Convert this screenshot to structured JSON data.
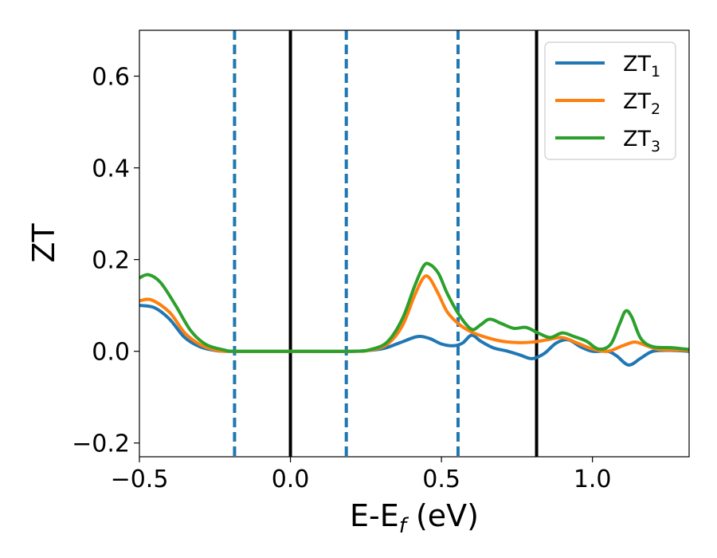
{
  "chart_data": {
    "type": "line",
    "xlabel": "E-E",
    "xlabel_sub": "f",
    "xlabel_unit": " (eV)",
    "ylabel": "ZT",
    "xlim": [
      -0.5,
      1.32
    ],
    "ylim": [
      -0.23,
      0.7
    ],
    "xticks": [
      -0.5,
      0.0,
      0.5,
      1.0
    ],
    "xtick_labels": [
      "−0.5",
      "0.0",
      "0.5",
      "1.0"
    ],
    "yticks": [
      -0.2,
      0.0,
      0.2,
      0.4,
      0.6
    ],
    "ytick_labels": [
      "−0.2",
      "0.0",
      "0.2",
      "0.4",
      "0.6"
    ],
    "grid": false,
    "legend_position": "top-right",
    "vlines_solid": [
      0.0,
      0.815
    ],
    "vlines_dashed": [
      -0.185,
      0.185,
      0.555
    ],
    "vline_solid_color": "#000000",
    "vline_dashed_color": "#1f77b4",
    "series": [
      {
        "name": "ZT",
        "name_sub": "1",
        "color": "#1f77b4",
        "points": [
          [
            -0.5,
            0.1
          ],
          [
            -0.45,
            0.095
          ],
          [
            -0.4,
            0.07
          ],
          [
            -0.35,
            0.03
          ],
          [
            -0.3,
            0.01
          ],
          [
            -0.25,
            0.002
          ],
          [
            -0.2,
            0.0
          ],
          [
            0.0,
            0.0
          ],
          [
            0.2,
            0.0
          ],
          [
            0.3,
            0.005
          ],
          [
            0.36,
            0.018
          ],
          [
            0.42,
            0.032
          ],
          [
            0.46,
            0.028
          ],
          [
            0.5,
            0.016
          ],
          [
            0.54,
            0.012
          ],
          [
            0.57,
            0.018
          ],
          [
            0.6,
            0.035
          ],
          [
            0.63,
            0.022
          ],
          [
            0.67,
            0.008
          ],
          [
            0.72,
            0.0
          ],
          [
            0.76,
            -0.008
          ],
          [
            0.8,
            -0.016
          ],
          [
            0.84,
            -0.005
          ],
          [
            0.88,
            0.018
          ],
          [
            0.92,
            0.025
          ],
          [
            0.96,
            0.01
          ],
          [
            1.0,
            0.0
          ],
          [
            1.05,
            0.0
          ],
          [
            1.08,
            -0.01
          ],
          [
            1.12,
            -0.03
          ],
          [
            1.16,
            -0.015
          ],
          [
            1.2,
            0.0
          ],
          [
            1.26,
            0.002
          ],
          [
            1.32,
            0.0
          ]
        ]
      },
      {
        "name": "ZT",
        "name_sub": "2",
        "color": "#ff7f0e",
        "points": [
          [
            -0.5,
            0.11
          ],
          [
            -0.46,
            0.112
          ],
          [
            -0.4,
            0.085
          ],
          [
            -0.35,
            0.04
          ],
          [
            -0.3,
            0.015
          ],
          [
            -0.25,
            0.003
          ],
          [
            -0.2,
            0.0
          ],
          [
            0.0,
            0.0
          ],
          [
            0.2,
            0.0
          ],
          [
            0.26,
            0.002
          ],
          [
            0.32,
            0.015
          ],
          [
            0.37,
            0.055
          ],
          [
            0.41,
            0.12
          ],
          [
            0.44,
            0.16
          ],
          [
            0.46,
            0.16
          ],
          [
            0.49,
            0.125
          ],
          [
            0.52,
            0.085
          ],
          [
            0.56,
            0.058
          ],
          [
            0.6,
            0.042
          ],
          [
            0.65,
            0.03
          ],
          [
            0.7,
            0.022
          ],
          [
            0.75,
            0.019
          ],
          [
            0.8,
            0.02
          ],
          [
            0.85,
            0.025
          ],
          [
            0.9,
            0.03
          ],
          [
            0.95,
            0.018
          ],
          [
            1.0,
            0.005
          ],
          [
            1.05,
            0.0
          ],
          [
            1.1,
            0.012
          ],
          [
            1.14,
            0.02
          ],
          [
            1.18,
            0.012
          ],
          [
            1.22,
            0.004
          ],
          [
            1.28,
            0.003
          ],
          [
            1.32,
            0.002
          ]
        ]
      },
      {
        "name": "ZT",
        "name_sub": "3",
        "color": "#2ca02c",
        "points": [
          [
            -0.5,
            0.16
          ],
          [
            -0.47,
            0.167
          ],
          [
            -0.43,
            0.15
          ],
          [
            -0.38,
            0.1
          ],
          [
            -0.33,
            0.045
          ],
          [
            -0.28,
            0.015
          ],
          [
            -0.22,
            0.003
          ],
          [
            -0.18,
            0.0
          ],
          [
            0.0,
            0.0
          ],
          [
            0.2,
            0.0
          ],
          [
            0.26,
            0.003
          ],
          [
            0.32,
            0.02
          ],
          [
            0.37,
            0.07
          ],
          [
            0.41,
            0.14
          ],
          [
            0.44,
            0.185
          ],
          [
            0.46,
            0.19
          ],
          [
            0.49,
            0.17
          ],
          [
            0.52,
            0.125
          ],
          [
            0.56,
            0.078
          ],
          [
            0.6,
            0.048
          ],
          [
            0.63,
            0.058
          ],
          [
            0.66,
            0.07
          ],
          [
            0.7,
            0.06
          ],
          [
            0.74,
            0.05
          ],
          [
            0.78,
            0.052
          ],
          [
            0.82,
            0.04
          ],
          [
            0.86,
            0.03
          ],
          [
            0.9,
            0.04
          ],
          [
            0.94,
            0.032
          ],
          [
            0.98,
            0.022
          ],
          [
            1.02,
            0.005
          ],
          [
            1.06,
            0.015
          ],
          [
            1.09,
            0.06
          ],
          [
            1.11,
            0.088
          ],
          [
            1.13,
            0.075
          ],
          [
            1.16,
            0.028
          ],
          [
            1.2,
            0.01
          ],
          [
            1.26,
            0.008
          ],
          [
            1.32,
            0.004
          ]
        ]
      }
    ]
  }
}
